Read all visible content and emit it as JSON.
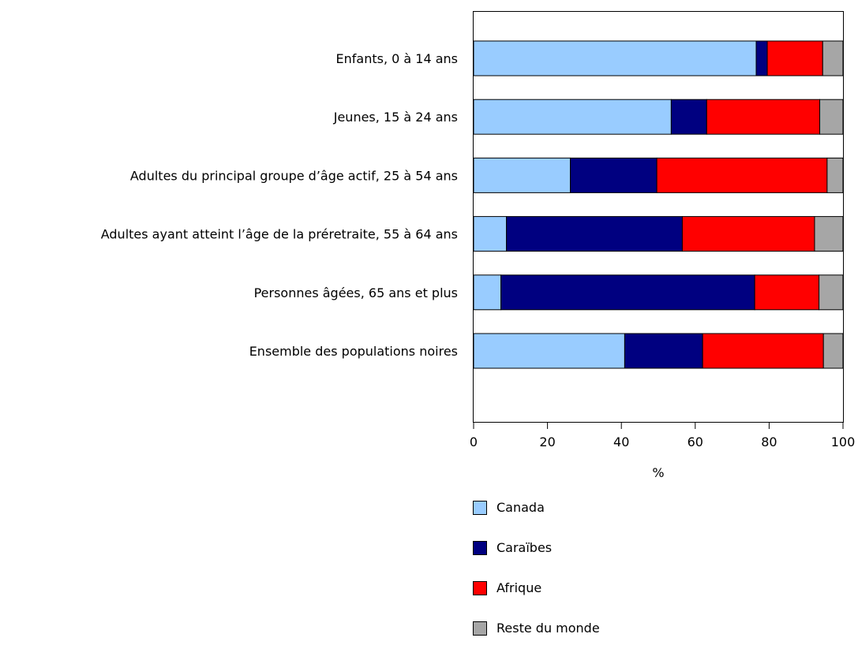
{
  "chart_data": {
    "type": "bar",
    "orientation": "horizontal",
    "stacked": true,
    "categories": [
      "Enfants, 0 à 14 ans",
      "Jeunes, 15 à 24 ans",
      "Adultes du principal groupe d’âge actif, 25 à 54 ans",
      "Adultes ayant atteint l’âge de la préretraite, 55 à 64 ans",
      "Personnes âgées, 65 ans et plus",
      "Ensemble des populations noires"
    ],
    "series": [
      {
        "name": "Canada",
        "color": "#99ccff",
        "values": [
          76.5,
          53.5,
          26.2,
          8.9,
          7.4,
          40.9
        ]
      },
      {
        "name": "Caraïbes",
        "color": "#000080",
        "values": [
          3.0,
          9.6,
          23.4,
          47.6,
          68.7,
          21.1
        ]
      },
      {
        "name": "Afrique",
        "color": "#ff0000",
        "values": [
          15.0,
          30.6,
          46.1,
          35.8,
          17.4,
          32.7
        ]
      },
      {
        "name": "Reste du monde",
        "color": "#a6a6a6",
        "values": [
          5.5,
          6.3,
          4.3,
          7.7,
          6.5,
          5.3
        ]
      }
    ],
    "xlabel": "%",
    "xlim": [
      0,
      100
    ],
    "xticks": [
      "0",
      "20",
      "40",
      "60",
      "80",
      "100"
    ],
    "grid": false,
    "legend_position": "bottom"
  }
}
